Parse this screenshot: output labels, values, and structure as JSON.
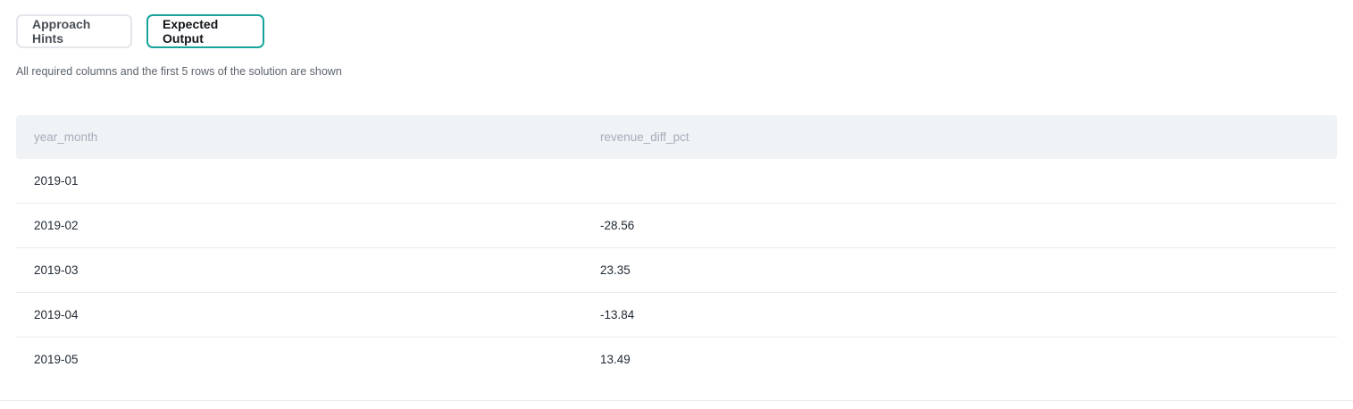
{
  "tabs": {
    "hints_label": "Approach Hints",
    "output_label": "Expected Output"
  },
  "caption": "All required columns and the first 5 rows of the solution are shown",
  "table": {
    "columns": [
      "year_month",
      "revenue_diff_pct"
    ],
    "rows": [
      [
        "2019-01",
        ""
      ],
      [
        "2019-02",
        "-28.56"
      ],
      [
        "2019-03",
        "23.35"
      ],
      [
        "2019-04",
        "-13.84"
      ],
      [
        "2019-05",
        "13.49"
      ]
    ]
  },
  "colors": {
    "accent": "#17a39a",
    "header_bg": "#f0f3f6"
  }
}
